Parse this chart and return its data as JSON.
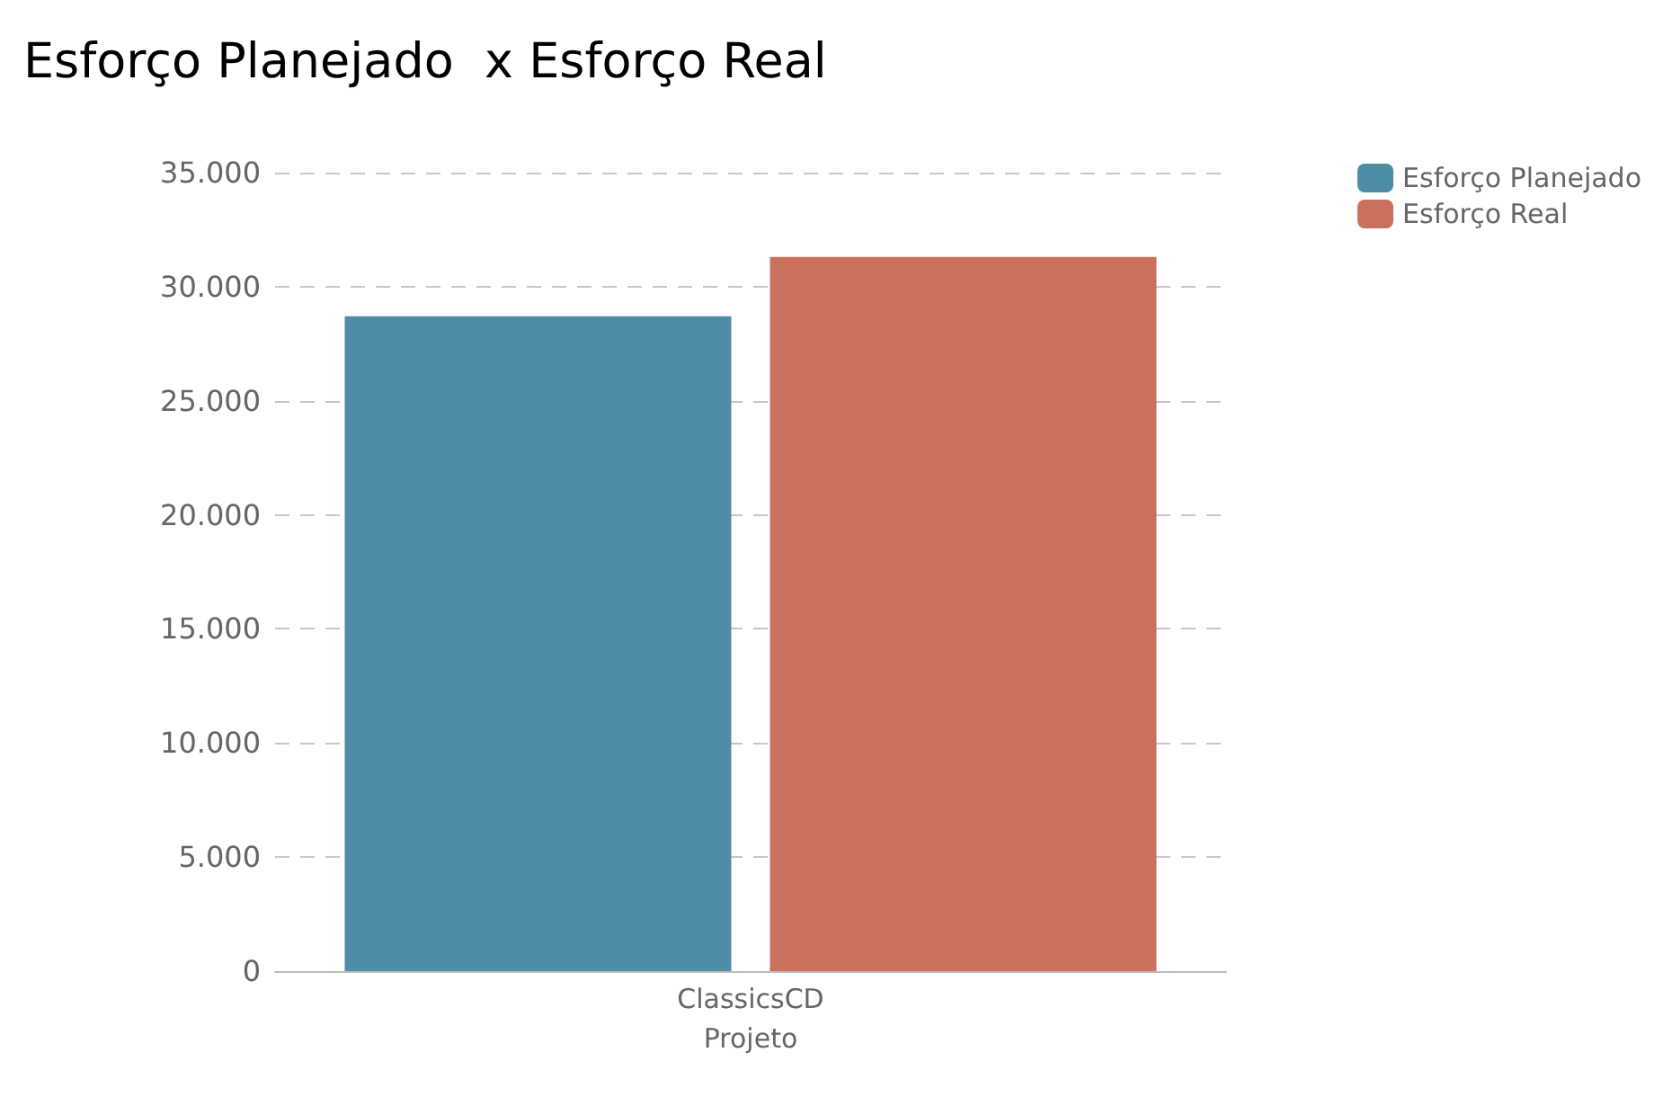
{
  "chart_data": {
    "type": "bar",
    "title": "Esforço Planejado  x Esforço Real",
    "xlabel": "Projeto",
    "categories": [
      "ClassicsCD"
    ],
    "series": [
      {
        "name": "Esforço Planejado",
        "color": "#4f8ca6",
        "values": [
          28700
        ]
      },
      {
        "name": "Esforço Real",
        "color": "#cc705e",
        "values": [
          31300
        ]
      }
    ],
    "ylim": [
      0,
      35000
    ],
    "yticks": [
      {
        "value": 0,
        "label": "0"
      },
      {
        "value": 5000,
        "label": "5.000"
      },
      {
        "value": 10000,
        "label": "10.000"
      },
      {
        "value": 15000,
        "label": "15.000"
      },
      {
        "value": 20000,
        "label": "20.000"
      },
      {
        "value": 25000,
        "label": "25.000"
      },
      {
        "value": 30000,
        "label": "30.000"
      },
      {
        "value": 35000,
        "label": "35.000"
      }
    ],
    "grid": "y",
    "legend": "top right"
  }
}
